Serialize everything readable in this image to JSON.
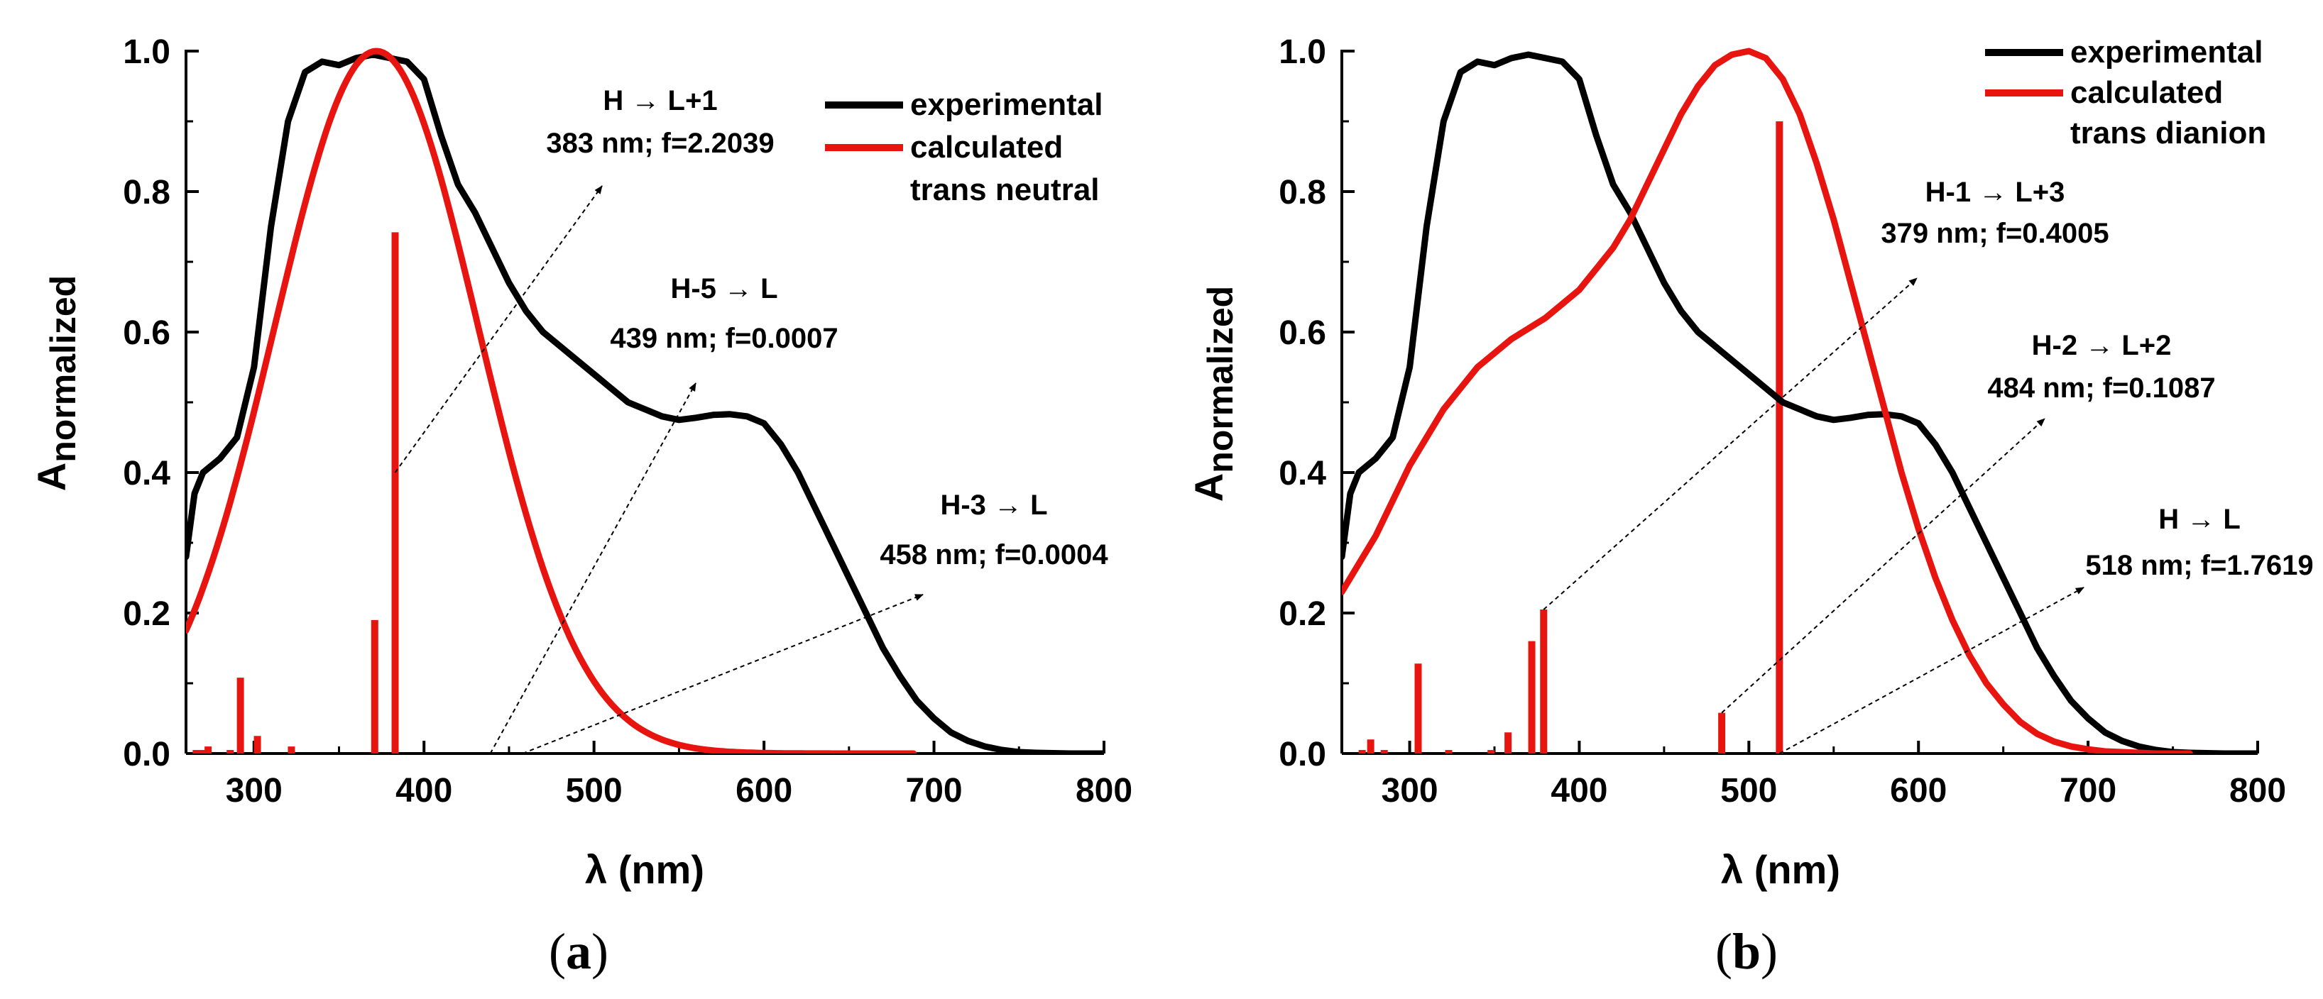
{
  "chart_data": [
    {
      "type": "line",
      "panel_caption": "(a)",
      "xlabel": "λ (nm)",
      "ylabel_main": "A",
      "ylabel_sub": "normalized",
      "xlim": [
        260,
        800
      ],
      "ylim": [
        0,
        1.0
      ],
      "xticks": [
        300,
        400,
        500,
        600,
        700,
        800
      ],
      "xtick_labels": [
        "300",
        "400",
        "500",
        "600",
        "700",
        "800"
      ],
      "yticks": [
        0.0,
        0.2,
        0.4,
        0.6,
        0.8,
        1.0
      ],
      "ytick_labels": [
        "0.0",
        "0.2",
        "0.4",
        "0.6",
        "0.8",
        "1.0"
      ],
      "legend": {
        "position": "top-right",
        "entries": [
          {
            "label": "experimental",
            "color": "#000000"
          },
          {
            "label": "calculated",
            "color": "#e8140f"
          }
        ],
        "extra_line": "trans neutral"
      },
      "series": [
        {
          "name": "experimental",
          "color": "#000000",
          "x": [
            260,
            265,
            270,
            280,
            290,
            300,
            310,
            320,
            330,
            340,
            350,
            360,
            370,
            380,
            390,
            400,
            410,
            420,
            430,
            440,
            450,
            460,
            470,
            480,
            490,
            500,
            510,
            520,
            530,
            540,
            550,
            560,
            570,
            580,
            590,
            600,
            610,
            620,
            630,
            640,
            650,
            660,
            670,
            680,
            690,
            700,
            710,
            720,
            730,
            740,
            750,
            760,
            780,
            800
          ],
          "y": [
            0.28,
            0.37,
            0.4,
            0.42,
            0.45,
            0.55,
            0.75,
            0.9,
            0.97,
            0.985,
            0.98,
            0.99,
            0.995,
            0.99,
            0.985,
            0.96,
            0.88,
            0.81,
            0.77,
            0.72,
            0.67,
            0.63,
            0.6,
            0.58,
            0.56,
            0.54,
            0.52,
            0.5,
            0.49,
            0.48,
            0.475,
            0.478,
            0.482,
            0.483,
            0.48,
            0.47,
            0.44,
            0.4,
            0.35,
            0.3,
            0.25,
            0.2,
            0.15,
            0.11,
            0.075,
            0.05,
            0.03,
            0.018,
            0.01,
            0.005,
            0.002,
            0.001,
            0.0,
            0.0
          ]
        },
        {
          "name": "calculated trans neutral",
          "color": "#e8140f",
          "gaussian": {
            "center": 372,
            "sigma": 60,
            "amplitude": 1.0,
            "x_from": 260,
            "x_to": 688
          }
        }
      ],
      "sticks": {
        "color": "#e8140f",
        "x": [
          266,
          270,
          273,
          286,
          292,
          302,
          322,
          371,
          383
        ],
        "y": [
          0.005,
          0.005,
          0.01,
          0.005,
          0.108,
          0.025,
          0.01,
          0.19,
          0.742
        ]
      },
      "annotations": [
        {
          "transition": "H → L+1",
          "line1": "H  →  L+1",
          "line2": "383 nm; f=2.2039",
          "target": [
            383,
            0.4
          ]
        },
        {
          "transition": "H-5 → L",
          "line1": "H-5  →  L",
          "line2": "439 nm; f=0.0007",
          "target": [
            439,
            0.0
          ]
        },
        {
          "transition": "H-3 → L",
          "line1": "H-3  →  L",
          "line2": "458 nm; f=0.0004",
          "target": [
            458,
            0.0
          ]
        }
      ]
    },
    {
      "type": "line",
      "panel_caption": "(b)",
      "xlabel": "λ (nm)",
      "ylabel_main": "A",
      "ylabel_sub": "normalized",
      "xlim": [
        260,
        800
      ],
      "ylim": [
        0,
        1.0
      ],
      "xticks": [
        300,
        400,
        500,
        600,
        700,
        800
      ],
      "xtick_labels": [
        "300",
        "400",
        "500",
        "600",
        "700",
        "800"
      ],
      "yticks": [
        0.0,
        0.2,
        0.4,
        0.6,
        0.8,
        1.0
      ],
      "ytick_labels": [
        "0.0",
        "0.2",
        "0.4",
        "0.6",
        "0.8",
        "1.0"
      ],
      "legend": {
        "position": "top-right",
        "entries": [
          {
            "label": "experimental",
            "color": "#000000"
          },
          {
            "label": "calculated",
            "color": "#e8140f"
          }
        ],
        "extra_line": "trans dianion"
      },
      "series": [
        {
          "name": "experimental",
          "color": "#000000",
          "x": [
            260,
            265,
            270,
            280,
            290,
            300,
            310,
            320,
            330,
            340,
            350,
            360,
            370,
            380,
            390,
            400,
            410,
            420,
            430,
            440,
            450,
            460,
            470,
            480,
            490,
            500,
            510,
            520,
            530,
            540,
            550,
            560,
            570,
            580,
            590,
            600,
            610,
            620,
            630,
            640,
            650,
            660,
            670,
            680,
            690,
            700,
            710,
            720,
            730,
            740,
            750,
            760,
            780,
            800
          ],
          "y": [
            0.28,
            0.37,
            0.4,
            0.42,
            0.45,
            0.55,
            0.75,
            0.9,
            0.97,
            0.985,
            0.98,
            0.99,
            0.995,
            0.99,
            0.985,
            0.96,
            0.88,
            0.81,
            0.77,
            0.72,
            0.67,
            0.63,
            0.6,
            0.58,
            0.56,
            0.54,
            0.52,
            0.5,
            0.49,
            0.48,
            0.475,
            0.478,
            0.482,
            0.483,
            0.48,
            0.47,
            0.44,
            0.4,
            0.35,
            0.3,
            0.25,
            0.2,
            0.15,
            0.11,
            0.075,
            0.05,
            0.03,
            0.018,
            0.01,
            0.005,
            0.002,
            0.001,
            0.0,
            0.0
          ]
        },
        {
          "name": "calculated trans dianion",
          "color": "#e8140f",
          "x": [
            260,
            270,
            280,
            290,
            300,
            310,
            320,
            330,
            340,
            350,
            360,
            370,
            380,
            390,
            400,
            410,
            420,
            430,
            440,
            450,
            460,
            470,
            480,
            490,
            500,
            510,
            520,
            530,
            540,
            550,
            560,
            570,
            580,
            590,
            600,
            610,
            620,
            630,
            640,
            650,
            660,
            670,
            680,
            690,
            700,
            710,
            720,
            730,
            740,
            750,
            760
          ],
          "y": [
            0.23,
            0.27,
            0.31,
            0.36,
            0.41,
            0.45,
            0.49,
            0.52,
            0.55,
            0.57,
            0.59,
            0.605,
            0.62,
            0.64,
            0.66,
            0.69,
            0.72,
            0.76,
            0.81,
            0.86,
            0.91,
            0.95,
            0.98,
            0.995,
            1.0,
            0.99,
            0.96,
            0.91,
            0.84,
            0.76,
            0.67,
            0.58,
            0.49,
            0.4,
            0.32,
            0.25,
            0.19,
            0.14,
            0.1,
            0.07,
            0.045,
            0.028,
            0.017,
            0.01,
            0.006,
            0.003,
            0.002,
            0.001,
            0.0,
            0.0,
            0.0
          ]
        }
      ],
      "sticks": {
        "color": "#e8140f",
        "x": [
          272,
          277,
          285,
          305,
          323,
          348,
          358,
          372,
          379,
          484,
          518
        ],
        "y": [
          0.005,
          0.02,
          0.005,
          0.128,
          0.005,
          0.005,
          0.03,
          0.16,
          0.205,
          0.058,
          0.9
        ]
      },
      "annotations": [
        {
          "transition": "H-1 → L+3",
          "line1": "H-1  →  L+3",
          "line2": "379 nm; f=0.4005",
          "target": [
            379,
            0.205
          ]
        },
        {
          "transition": "H-2 → L+2",
          "line1": "H-2  →  L+2",
          "line2": "484 nm; f=0.1087",
          "target": [
            484,
            0.058
          ]
        },
        {
          "transition": "H → L",
          "line1": "H  →  L",
          "line2": "518 nm; f=1.7619",
          "target": [
            518,
            0.0
          ]
        }
      ]
    }
  ]
}
